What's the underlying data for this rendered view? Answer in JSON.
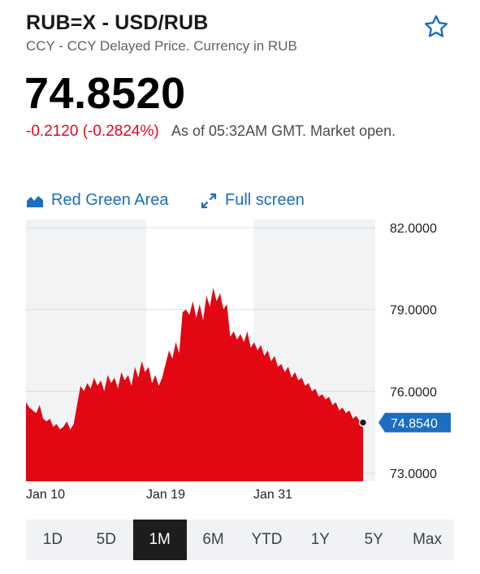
{
  "header": {
    "ticker": "RUB=X - USD/RUB",
    "subtitle": "CCY - CCY Delayed Price. Currency in RUB",
    "star_icon": "star-outline-icon"
  },
  "quote": {
    "price": "74.8520",
    "change": "-0.2120 (-0.2824%)",
    "as_of": "As of 05:32AM GMT. Market open."
  },
  "toolbar": {
    "chart_type_label": "Red Green Area",
    "chart_type_icon": "area-chart-icon",
    "fullscreen_label": "Full screen",
    "fullscreen_icon": "expand-arrows-icon"
  },
  "colors": {
    "area": "#e30613",
    "accent": "#1b6ec2",
    "negative": "#e0061f"
  },
  "chart_data": {
    "type": "area",
    "ylim": [
      72.7,
      82.3
    ],
    "yticks": [
      "82.0000",
      "79.0000",
      "76.0000",
      "73.0000"
    ],
    "ytick_values": [
      82,
      79,
      76,
      73
    ],
    "xticks": [
      "Jan 10",
      "Jan 19",
      "Jan 31"
    ],
    "current_value_label": "74.8540",
    "current_value": 74.854,
    "values": [
      75.6,
      75.4,
      75.3,
      75.2,
      75.5,
      75.0,
      74.9,
      75.0,
      74.7,
      74.8,
      74.6,
      74.7,
      74.9,
      74.6,
      74.8,
      75.5,
      76.2,
      76.0,
      76.3,
      76.1,
      76.5,
      76.2,
      76.4,
      76.0,
      76.6,
      76.3,
      76.5,
      76.1,
      76.7,
      76.4,
      76.6,
      76.2,
      76.9,
      76.5,
      77.1,
      76.7,
      76.9,
      76.3,
      76.6,
      76.2,
      76.5,
      77.0,
      77.5,
      77.2,
      77.8,
      77.4,
      78.9,
      79.0,
      78.8,
      79.3,
      78.7,
      79.2,
      78.6,
      79.5,
      79.1,
      79.8,
      79.3,
      79.6,
      79.0,
      79.2,
      78.0,
      78.2,
      77.9,
      78.1,
      77.8,
      78.2,
      77.6,
      77.8,
      77.5,
      77.7,
      77.3,
      77.5,
      77.1,
      77.3,
      76.9,
      77.0,
      76.7,
      76.9,
      76.5,
      76.7,
      76.4,
      76.5,
      76.2,
      76.3,
      76.0,
      76.1,
      75.8,
      75.9,
      75.7,
      75.8,
      75.5,
      75.6,
      75.3,
      75.4,
      75.2,
      75.3,
      75.0,
      75.1,
      74.9,
      74.9
    ]
  },
  "ranges": {
    "active": 2,
    "items": [
      "1D",
      "5D",
      "1M",
      "6M",
      "YTD",
      "1Y",
      "5Y",
      "Max"
    ]
  }
}
